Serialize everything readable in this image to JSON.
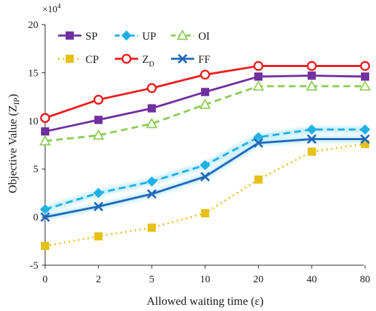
{
  "chart_data": {
    "type": "line",
    "exponent_label": "×10",
    "exponent_power": "4",
    "xlabel": "Allowed waiting time (ε)",
    "ylabel_main": "Objective Value (Z",
    "ylabel_sub": "IP",
    "ylabel_close": ")",
    "categories": [
      "0",
      "2",
      "5",
      "10",
      "20",
      "40",
      "80"
    ],
    "ylim": [
      -5,
      20
    ],
    "yticks": [
      -5,
      0,
      5,
      10,
      15,
      20
    ],
    "grid": false,
    "legend_position": "top-left",
    "series": [
      {
        "name": "SP",
        "name_sub": "",
        "color": "#7030a0",
        "marker": "square",
        "dash": "solid",
        "glow": false,
        "values": [
          8.9,
          10.1,
          11.3,
          13.0,
          14.6,
          14.7,
          14.6
        ]
      },
      {
        "name": "UP",
        "name_sub": "",
        "color": "#1fb1e6",
        "marker": "diamond",
        "dash": "dashed",
        "glow": false,
        "values": [
          0.8,
          2.5,
          3.7,
          5.4,
          8.3,
          9.1,
          9.1
        ]
      },
      {
        "name": "OI",
        "name_sub": "",
        "color": "#8ccc52",
        "marker": "triangle",
        "dash": "dashed",
        "glow": false,
        "values": [
          7.9,
          8.5,
          9.7,
          11.7,
          13.6,
          13.6,
          13.6
        ]
      },
      {
        "name": "CP",
        "name_sub": "",
        "color": "#e6c118",
        "marker": "square",
        "dash": "dotted",
        "glow": false,
        "values": [
          -3.0,
          -2.0,
          -1.1,
          0.4,
          3.9,
          6.8,
          7.6
        ]
      },
      {
        "name": "Z",
        "name_sub": "D",
        "color": "#ee1c1c",
        "marker": "circle",
        "dash": "solid",
        "glow": false,
        "values": [
          10.3,
          12.2,
          13.4,
          14.8,
          15.7,
          15.7,
          15.7
        ]
      },
      {
        "name": "FF",
        "name_sub": "",
        "color": "#2268b8",
        "marker": "x",
        "dash": "solid",
        "glow": true,
        "values": [
          0.0,
          1.1,
          2.4,
          4.2,
          7.7,
          8.1,
          8.1
        ]
      }
    ]
  }
}
